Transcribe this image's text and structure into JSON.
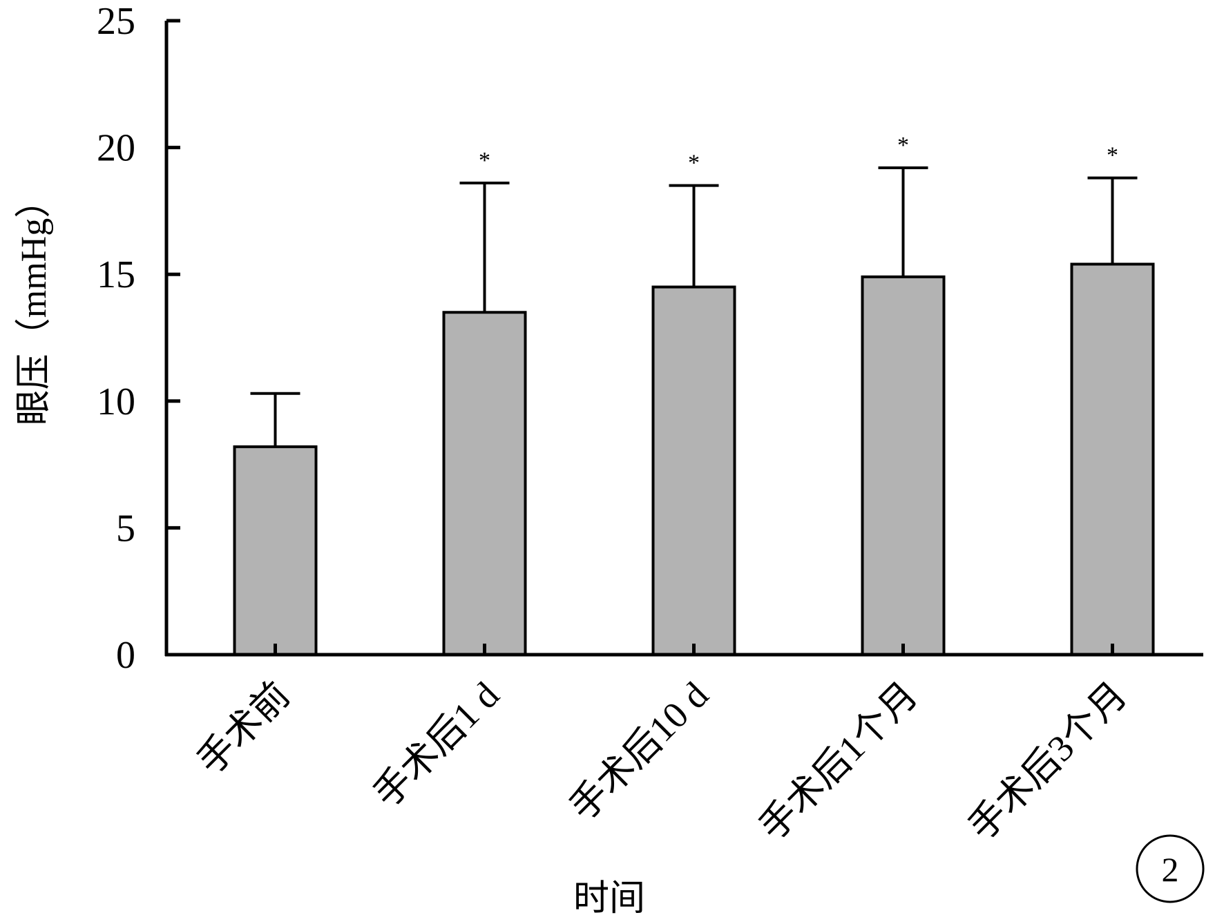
{
  "chart_data": {
    "type": "bar",
    "title": "",
    "xlabel": "时间",
    "ylabel": "眼压（mmHg）",
    "ylim": [
      0,
      25
    ],
    "yticks": [
      0,
      5,
      10,
      15,
      20,
      25
    ],
    "grid": false,
    "legend": "none",
    "categories": [
      "手术前",
      "手术后1 d",
      "手术后10 d",
      "手术后1个月",
      "手术后3个月"
    ],
    "values": [
      8.2,
      13.5,
      14.5,
      14.9,
      15.4
    ],
    "error_upper": [
      10.3,
      18.6,
      18.5,
      19.2,
      18.8
    ],
    "significance": [
      "",
      "*",
      "*",
      "*",
      "*"
    ],
    "panel_label": "2",
    "colors": {
      "bar_fill": "#b3b3b3",
      "bar_stroke": "#000000",
      "axis": "#000000"
    }
  }
}
